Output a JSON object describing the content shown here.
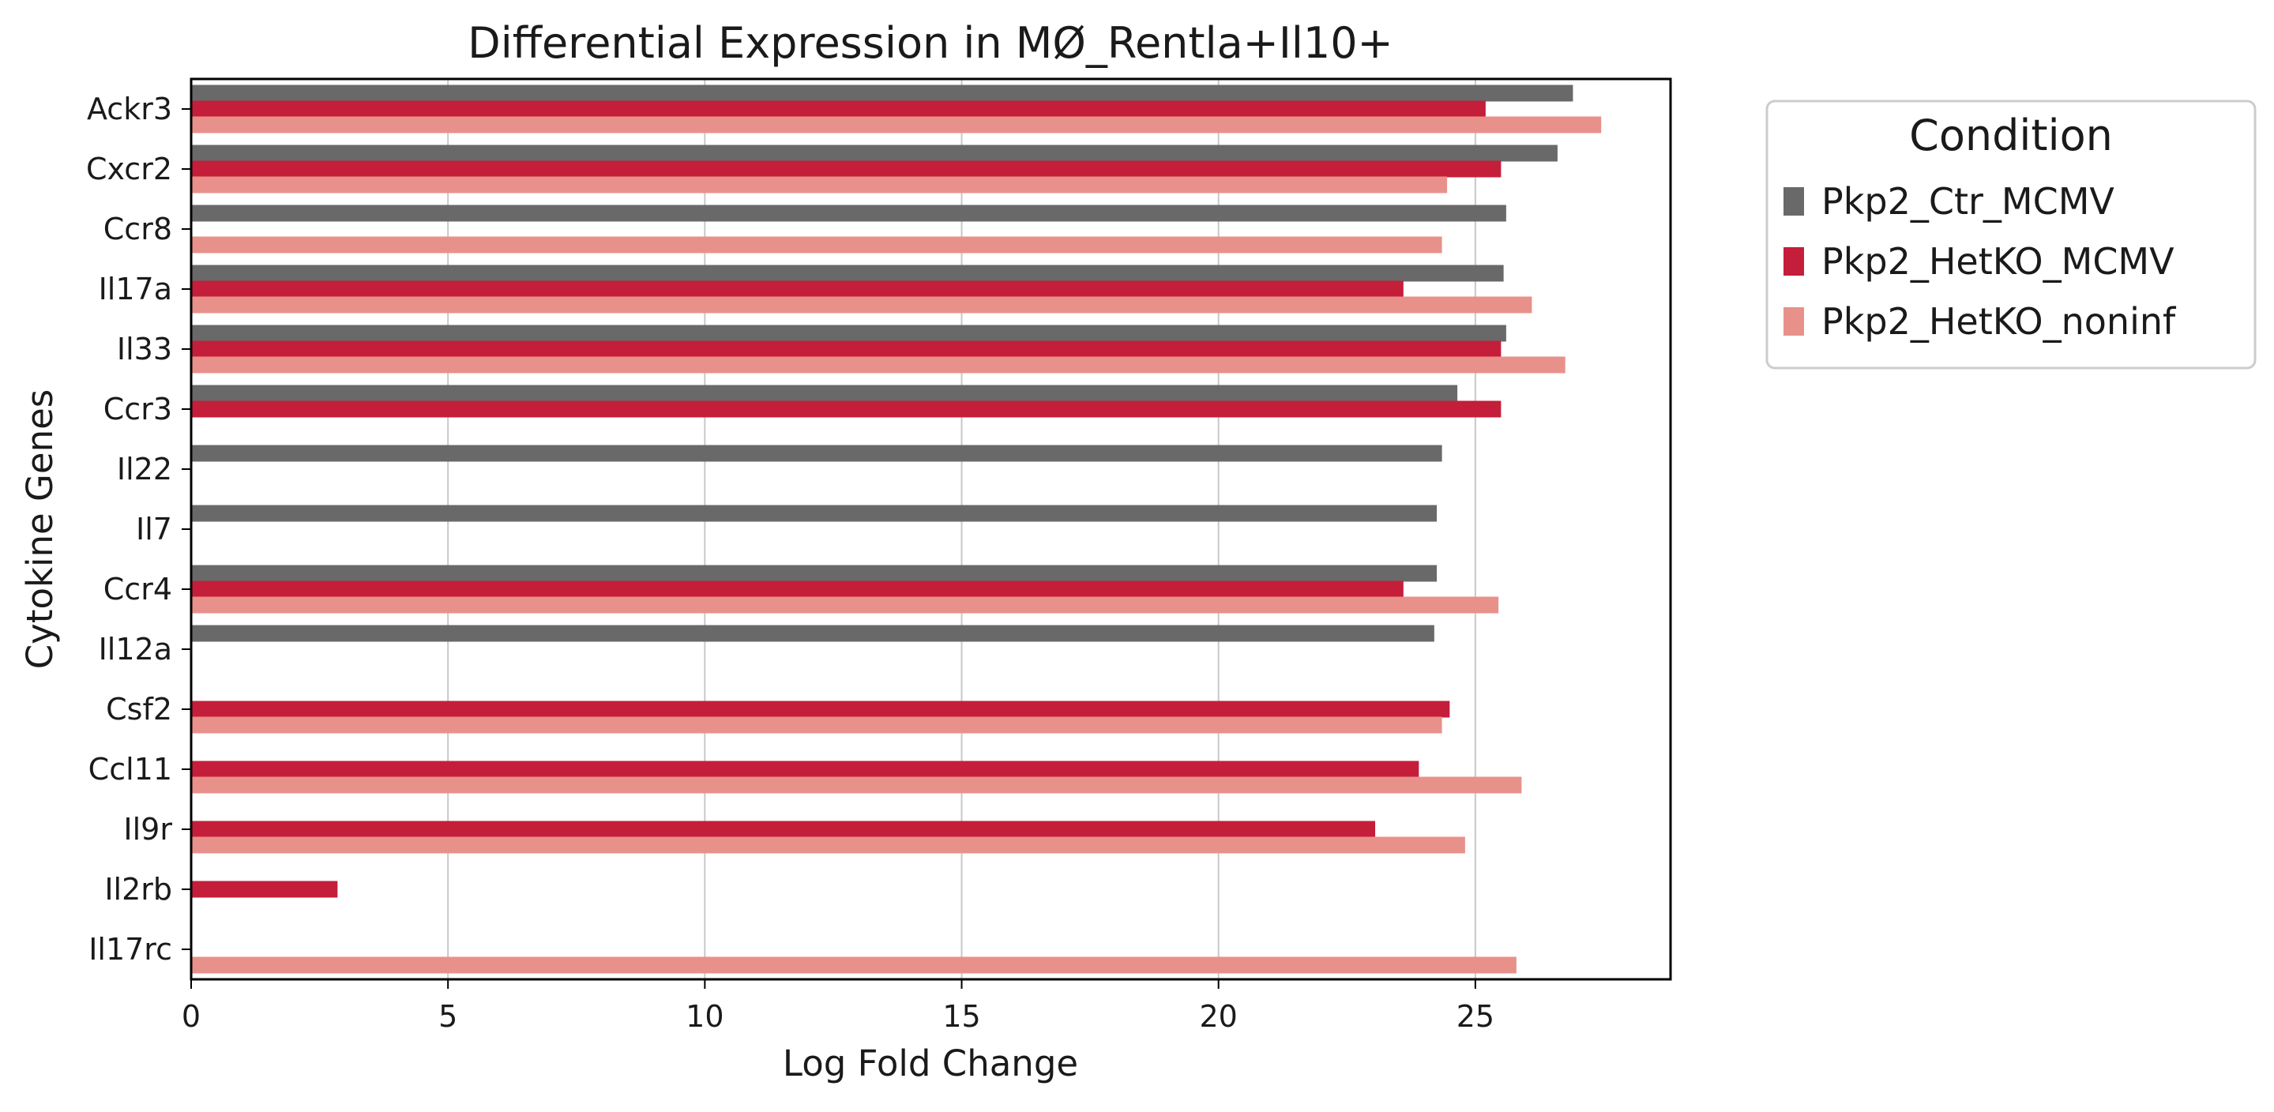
{
  "chart_data": {
    "type": "bar",
    "orientation": "horizontal",
    "title": "Differential Expression in MØ_Rentla+Il10+",
    "xlabel": "Log Fold Change",
    "ylabel": "Cytokine Genes",
    "xlim": [
      0,
      28.8
    ],
    "xticks": [
      0,
      5,
      10,
      15,
      20,
      25
    ],
    "grid": "vertical",
    "legend": {
      "title": "Condition",
      "placement": "outside-right"
    },
    "categories": [
      "Ackr3",
      "Cxcr2",
      "Ccr8",
      "Il17a",
      "Il33",
      "Ccr3",
      "Il22",
      "Il7",
      "Ccr4",
      "Il12a",
      "Csf2",
      "Ccl11",
      "Il9r",
      "Il2rb",
      "Il17rc"
    ],
    "series": [
      {
        "name": "Pkp2_Ctr_MCMV",
        "color": "#696969",
        "values": [
          26.9,
          26.6,
          25.6,
          25.55,
          25.6,
          24.65,
          24.35,
          24.25,
          24.25,
          24.2,
          null,
          null,
          null,
          null,
          null
        ]
      },
      {
        "name": "Pkp2_HetKO_MCMV",
        "color": "#c41e3a",
        "values": [
          25.2,
          25.5,
          null,
          23.6,
          25.5,
          25.5,
          null,
          null,
          23.6,
          null,
          24.5,
          23.9,
          23.05,
          2.85,
          null
        ]
      },
      {
        "name": "Pkp2_HetKO_noninf",
        "color": "#e8918a",
        "values": [
          27.45,
          24.45,
          24.35,
          26.1,
          26.75,
          null,
          null,
          null,
          25.45,
          null,
          24.35,
          25.9,
          24.8,
          null,
          25.8
        ]
      }
    ]
  }
}
